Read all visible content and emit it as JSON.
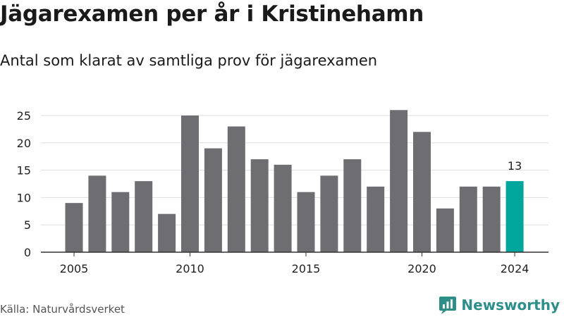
{
  "title": "Jägarexamen per år i Kristinehamn",
  "subtitle": "Antal som klarat av samtliga prov för jägarexamen",
  "source": "Källa: Naturvårdsverket",
  "brand": {
    "name": "Newsworthy",
    "icon": "newsworthy-logo-icon",
    "color": "#2e8f8a"
  },
  "chart_data": {
    "type": "bar",
    "categories": [
      2005,
      2006,
      2007,
      2008,
      2009,
      2010,
      2011,
      2012,
      2013,
      2014,
      2015,
      2016,
      2017,
      2018,
      2019,
      2020,
      2021,
      2022,
      2023,
      2024
    ],
    "values": [
      9,
      14,
      11,
      13,
      7,
      25,
      19,
      23,
      17,
      16,
      11,
      14,
      17,
      12,
      26,
      22,
      8,
      12,
      12,
      13
    ],
    "x_tick_labels": [
      "2005",
      "2010",
      "2015",
      "2020",
      "2024"
    ],
    "y_ticks": [
      0,
      5,
      10,
      15,
      20,
      25
    ],
    "ylim": [
      0,
      27
    ],
    "grid": true,
    "bar_color": "#6e6d72",
    "highlight_color": "#00a59b",
    "highlight_category": 2024,
    "data_labels": [
      {
        "category": 2024,
        "text": "13"
      }
    ]
  }
}
